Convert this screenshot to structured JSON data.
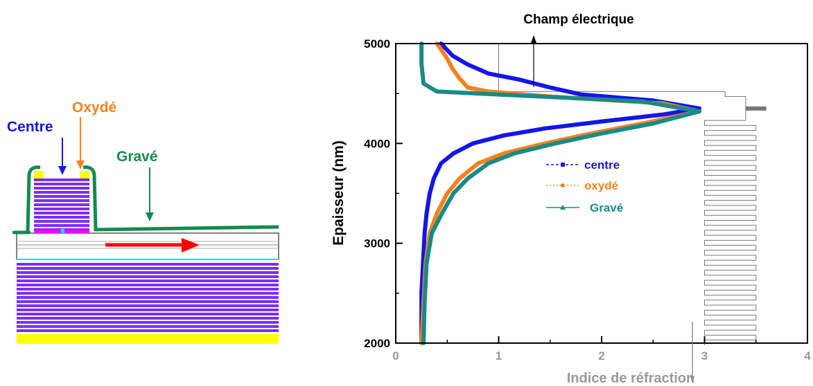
{
  "schematic": {
    "labels": {
      "centre": "Centre",
      "oxyde": "Oxydé",
      "grave": "Gravé"
    },
    "colors": {
      "centre": "#1515e6",
      "oxyde": "#f5821f",
      "grave": "#138a50",
      "dbr": "#7b2ff7",
      "metal": "#ffff00",
      "contact": "#ff00ff",
      "arrow": "#ff0000",
      "aperture": "#00e5ff"
    }
  },
  "chart_data": {
    "type": "line",
    "title": "Champ électrique",
    "xlabel": "Indice de réfraction",
    "ylabel": "Epaisseur (nm)",
    "xlim": [
      0,
      4
    ],
    "ylim": [
      2000,
      5000
    ],
    "xticks": [
      0,
      1,
      2,
      3,
      4
    ],
    "yticks": [
      2000,
      3000,
      4000,
      5000
    ],
    "grid": false,
    "legend_position": "center",
    "series": [
      {
        "name": "centre",
        "color": "#1515e6",
        "points": [
          [
            0.25,
            2000
          ],
          [
            0.25,
            2500
          ],
          [
            0.27,
            2900
          ],
          [
            0.28,
            3100
          ],
          [
            0.3,
            3300
          ],
          [
            0.33,
            3500
          ],
          [
            0.37,
            3650
          ],
          [
            0.44,
            3800
          ],
          [
            0.56,
            3900
          ],
          [
            0.75,
            4000
          ],
          [
            1.05,
            4080
          ],
          [
            1.45,
            4150
          ],
          [
            2.0,
            4220
          ],
          [
            2.6,
            4290
          ],
          [
            2.95,
            4350
          ],
          [
            2.5,
            4430
          ],
          [
            1.8,
            4490
          ],
          [
            1.5,
            4560
          ],
          [
            1.2,
            4640
          ],
          [
            0.9,
            4700
          ],
          [
            0.7,
            4790
          ],
          [
            0.55,
            4880
          ],
          [
            0.44,
            5000
          ]
        ]
      },
      {
        "name": "oxydé",
        "color": "#f5821f",
        "points": [
          [
            0.25,
            2000
          ],
          [
            0.27,
            2400
          ],
          [
            0.29,
            2800
          ],
          [
            0.33,
            3100
          ],
          [
            0.4,
            3300
          ],
          [
            0.5,
            3500
          ],
          [
            0.62,
            3650
          ],
          [
            0.8,
            3800
          ],
          [
            1.05,
            3900
          ],
          [
            1.45,
            4000
          ],
          [
            1.9,
            4100
          ],
          [
            2.4,
            4200
          ],
          [
            2.95,
            4320
          ],
          [
            2.6,
            4400
          ],
          [
            1.5,
            4470
          ],
          [
            0.9,
            4520
          ],
          [
            0.7,
            4560
          ],
          [
            0.62,
            4650
          ],
          [
            0.55,
            4750
          ],
          [
            0.5,
            4850
          ],
          [
            0.4,
            5000
          ]
        ]
      },
      {
        "name": "Gravé",
        "color": "#1a8a86",
        "points": [
          [
            0.27,
            2000
          ],
          [
            0.28,
            2400
          ],
          [
            0.3,
            2800
          ],
          [
            0.35,
            3100
          ],
          [
            0.45,
            3300
          ],
          [
            0.56,
            3500
          ],
          [
            0.7,
            3650
          ],
          [
            0.9,
            3800
          ],
          [
            1.15,
            3900
          ],
          [
            1.55,
            4000
          ],
          [
            2.0,
            4100
          ],
          [
            2.5,
            4200
          ],
          [
            2.95,
            4320
          ],
          [
            2.4,
            4420
          ],
          [
            1.0,
            4490
          ],
          [
            0.4,
            4520
          ],
          [
            0.27,
            4600
          ],
          [
            0.25,
            4800
          ],
          [
            0.25,
            5000
          ]
        ]
      }
    ],
    "annotations": [
      "Champ électrique"
    ]
  }
}
